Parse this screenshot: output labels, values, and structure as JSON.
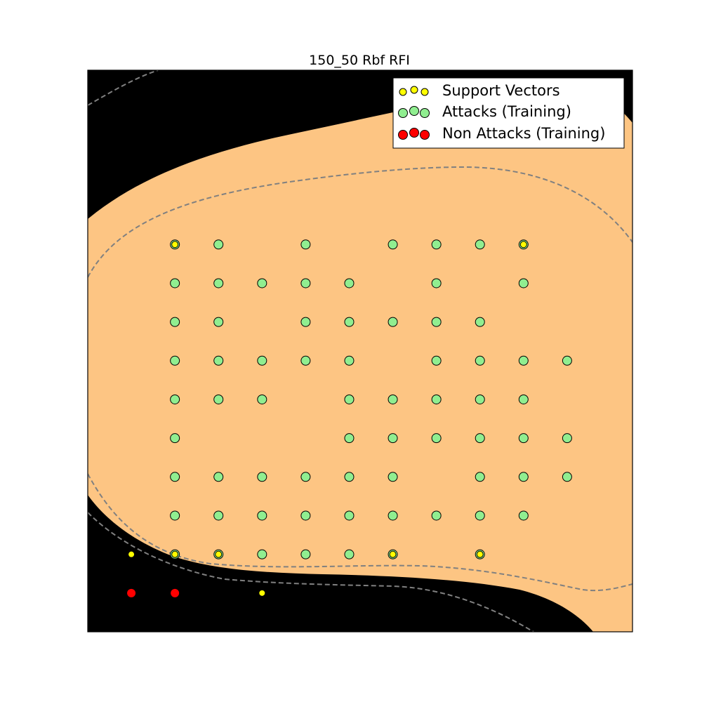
{
  "chart_data": {
    "type": "scatter",
    "title": "150_50 Rbf RFI",
    "xlabel": "",
    "ylabel": "",
    "xlim": [
      0,
      12.5
    ],
    "ylim": [
      0,
      14.5
    ],
    "grid": false,
    "ticks": "none",
    "legend": {
      "placement": "top-right",
      "entries": [
        "Support Vectors",
        "Attacks (Training)",
        "Non Attacks (Training)"
      ]
    },
    "colors": {
      "background_region": "#000000",
      "decision_region": "#fdc583",
      "margin_line": "#808080",
      "support_vectors": "#ffff00",
      "attacks": "#90ee90",
      "non_attacks": "#ff0000"
    },
    "series": [
      {
        "name": "Attacks (Training)",
        "points": [
          [
            2,
            10
          ],
          [
            3,
            10
          ],
          [
            5,
            10
          ],
          [
            7,
            10
          ],
          [
            8,
            10
          ],
          [
            9,
            10
          ],
          [
            10,
            10
          ],
          [
            2,
            9
          ],
          [
            3,
            9
          ],
          [
            4,
            9
          ],
          [
            5,
            9
          ],
          [
            6,
            9
          ],
          [
            8,
            9
          ],
          [
            10,
            9
          ],
          [
            2,
            8
          ],
          [
            3,
            8
          ],
          [
            5,
            8
          ],
          [
            6,
            8
          ],
          [
            7,
            8
          ],
          [
            8,
            8
          ],
          [
            9,
            8
          ],
          [
            2,
            7
          ],
          [
            3,
            7
          ],
          [
            4,
            7
          ],
          [
            5,
            7
          ],
          [
            6,
            7
          ],
          [
            8,
            7
          ],
          [
            9,
            7
          ],
          [
            10,
            7
          ],
          [
            11,
            7
          ],
          [
            2,
            6
          ],
          [
            3,
            6
          ],
          [
            4,
            6
          ],
          [
            6,
            6
          ],
          [
            7,
            6
          ],
          [
            8,
            6
          ],
          [
            9,
            6
          ],
          [
            10,
            6
          ],
          [
            2,
            5
          ],
          [
            6,
            5
          ],
          [
            7,
            5
          ],
          [
            8,
            5
          ],
          [
            9,
            5
          ],
          [
            10,
            5
          ],
          [
            11,
            5
          ],
          [
            2,
            4
          ],
          [
            3,
            4
          ],
          [
            4,
            4
          ],
          [
            5,
            4
          ],
          [
            6,
            4
          ],
          [
            7,
            4
          ],
          [
            9,
            4
          ],
          [
            10,
            4
          ],
          [
            11,
            4
          ],
          [
            2,
            3
          ],
          [
            3,
            3
          ],
          [
            4,
            3
          ],
          [
            5,
            3
          ],
          [
            6,
            3
          ],
          [
            7,
            3
          ],
          [
            8,
            3
          ],
          [
            9,
            3
          ],
          [
            10,
            3
          ],
          [
            2,
            2
          ],
          [
            3,
            2
          ],
          [
            4,
            2
          ],
          [
            5,
            2
          ],
          [
            6,
            2
          ],
          [
            7,
            2
          ],
          [
            9,
            2
          ]
        ]
      },
      {
        "name": "Non Attacks (Training)",
        "points": [
          [
            1,
            1
          ],
          [
            2,
            1
          ]
        ]
      },
      {
        "name": "Support Vectors",
        "points": [
          [
            2,
            10
          ],
          [
            10,
            10
          ],
          [
            1,
            2
          ],
          [
            2,
            2
          ],
          [
            3,
            2
          ],
          [
            7,
            2
          ],
          [
            9,
            2
          ],
          [
            4,
            1
          ]
        ]
      }
    ]
  }
}
